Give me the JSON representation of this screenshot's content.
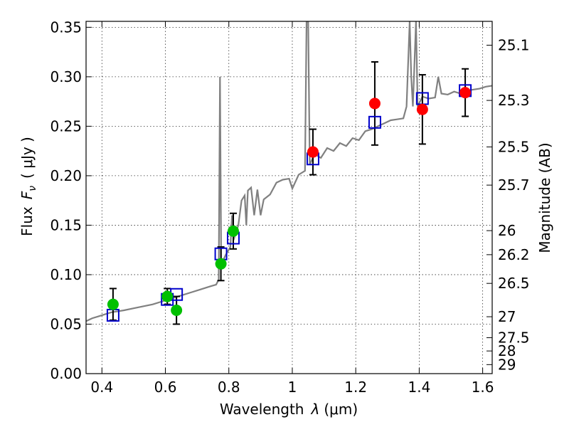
{
  "chart_data": {
    "type": "scatter",
    "xlabel_prefix": "Wavelength",
    "xlabel_symbol": "λ",
    "xlabel_unit": "(μm)",
    "ylabel_prefix": "Flux",
    "ylabel_symbol": "F",
    "ylabel_subscript": "ν",
    "ylabel_unit": "( μJy )",
    "y2label": "Magnitude (AB)",
    "xlim": [
      0.35,
      1.63
    ],
    "ylim": [
      0.0,
      0.356
    ],
    "xticks": [
      0.4,
      0.6,
      0.8,
      1.0,
      1.2,
      1.4,
      1.6
    ],
    "xtick_labels": [
      "0.4",
      "0.6",
      "0.8",
      "1",
      "1.2",
      "1.4",
      "1.6"
    ],
    "yticks": [
      0.0,
      0.05,
      0.1,
      0.15,
      0.2,
      0.25,
      0.3,
      0.35
    ],
    "ytick_labels": [
      "0.00",
      "0.05",
      "0.10",
      "0.15",
      "0.20",
      "0.25",
      "0.30",
      "0.35"
    ],
    "mag_ticks": [
      {
        "label": "25.1",
        "flux": 0.3319
      },
      {
        "label": "25.3",
        "flux": 0.2761
      },
      {
        "label": "25.5",
        "flux": 0.2291
      },
      {
        "label": "25.7",
        "flux": 0.1905
      },
      {
        "label": "26",
        "flux": 0.1445
      },
      {
        "label": "26.2",
        "flux": 0.1202
      },
      {
        "label": "26.5",
        "flux": 0.0912
      },
      {
        "label": "27",
        "flux": 0.0575
      },
      {
        "label": "27.5",
        "flux": 0.0363
      },
      {
        "label": "28",
        "flux": 0.0229
      },
      {
        "label": "29",
        "flux": 0.0091
      }
    ],
    "grid": true,
    "colors": {
      "sed": "#808080",
      "green": "#00c000",
      "red": "#ff0000",
      "model": "#0000cc",
      "errorbar": "#000000"
    },
    "green_points": [
      {
        "x": 0.435,
        "y": 0.07,
        "err": 0.016
      },
      {
        "x": 0.606,
        "y": 0.078,
        "err": 0.008
      },
      {
        "x": 0.635,
        "y": 0.064,
        "err": 0.014
      },
      {
        "x": 0.775,
        "y": 0.111,
        "err": 0.017
      },
      {
        "x": 0.814,
        "y": 0.144,
        "err": 0.018
      }
    ],
    "red_points": [
      {
        "x": 1.065,
        "y": 0.224,
        "err": 0.023
      },
      {
        "x": 1.26,
        "y": 0.273,
        "err": 0.042
      },
      {
        "x": 1.41,
        "y": 0.267,
        "err": 0.035
      },
      {
        "x": 1.545,
        "y": 0.284,
        "err": 0.024
      }
    ],
    "model_points": [
      {
        "x": 0.435,
        "y": 0.059
      },
      {
        "x": 0.606,
        "y": 0.075
      },
      {
        "x": 0.635,
        "y": 0.08
      },
      {
        "x": 0.775,
        "y": 0.121
      },
      {
        "x": 0.814,
        "y": 0.137
      },
      {
        "x": 1.065,
        "y": 0.217
      },
      {
        "x": 1.26,
        "y": 0.254
      },
      {
        "x": 1.41,
        "y": 0.278
      },
      {
        "x": 1.545,
        "y": 0.286
      }
    ],
    "sed_spectrum": [
      [
        0.35,
        0.053
      ],
      [
        0.37,
        0.056
      ],
      [
        0.39,
        0.058
      ],
      [
        0.41,
        0.06
      ],
      [
        0.43,
        0.062
      ],
      [
        0.45,
        0.063
      ],
      [
        0.47,
        0.064
      ],
      [
        0.5,
        0.066
      ],
      [
        0.53,
        0.068
      ],
      [
        0.56,
        0.07
      ],
      [
        0.59,
        0.073
      ],
      [
        0.62,
        0.076
      ],
      [
        0.65,
        0.079
      ],
      [
        0.68,
        0.082
      ],
      [
        0.71,
        0.085
      ],
      [
        0.74,
        0.088
      ],
      [
        0.76,
        0.09
      ],
      [
        0.768,
        0.095
      ],
      [
        0.772,
        0.3
      ],
      [
        0.776,
        0.11
      ],
      [
        0.79,
        0.12
      ],
      [
        0.805,
        0.128
      ],
      [
        0.81,
        0.16
      ],
      [
        0.815,
        0.135
      ],
      [
        0.83,
        0.15
      ],
      [
        0.84,
        0.175
      ],
      [
        0.85,
        0.18
      ],
      [
        0.855,
        0.15
      ],
      [
        0.86,
        0.185
      ],
      [
        0.87,
        0.188
      ],
      [
        0.88,
        0.16
      ],
      [
        0.89,
        0.186
      ],
      [
        0.9,
        0.16
      ],
      [
        0.91,
        0.176
      ],
      [
        0.93,
        0.181
      ],
      [
        0.95,
        0.193
      ],
      [
        0.97,
        0.196
      ],
      [
        0.99,
        0.197
      ],
      [
        1.0,
        0.187
      ],
      [
        1.02,
        0.201
      ],
      [
        1.04,
        0.205
      ],
      [
        1.045,
        0.356
      ],
      [
        1.05,
        0.356
      ],
      [
        1.055,
        0.211
      ],
      [
        1.07,
        0.222
      ],
      [
        1.09,
        0.218
      ],
      [
        1.11,
        0.228
      ],
      [
        1.13,
        0.225
      ],
      [
        1.15,
        0.233
      ],
      [
        1.17,
        0.23
      ],
      [
        1.19,
        0.238
      ],
      [
        1.21,
        0.236
      ],
      [
        1.23,
        0.245
      ],
      [
        1.25,
        0.247
      ],
      [
        1.27,
        0.25
      ],
      [
        1.29,
        0.253
      ],
      [
        1.31,
        0.256
      ],
      [
        1.33,
        0.257
      ],
      [
        1.35,
        0.258
      ],
      [
        1.36,
        0.27
      ],
      [
        1.37,
        0.356
      ],
      [
        1.375,
        0.3
      ],
      [
        1.38,
        0.27
      ],
      [
        1.39,
        0.356
      ],
      [
        1.395,
        0.27
      ],
      [
        1.41,
        0.28
      ],
      [
        1.43,
        0.278
      ],
      [
        1.45,
        0.279
      ],
      [
        1.46,
        0.3
      ],
      [
        1.47,
        0.283
      ],
      [
        1.49,
        0.282
      ],
      [
        1.51,
        0.285
      ],
      [
        1.53,
        0.283
      ],
      [
        1.55,
        0.286
      ],
      [
        1.57,
        0.287
      ],
      [
        1.59,
        0.288
      ],
      [
        1.61,
        0.29
      ],
      [
        1.63,
        0.291
      ]
    ]
  }
}
